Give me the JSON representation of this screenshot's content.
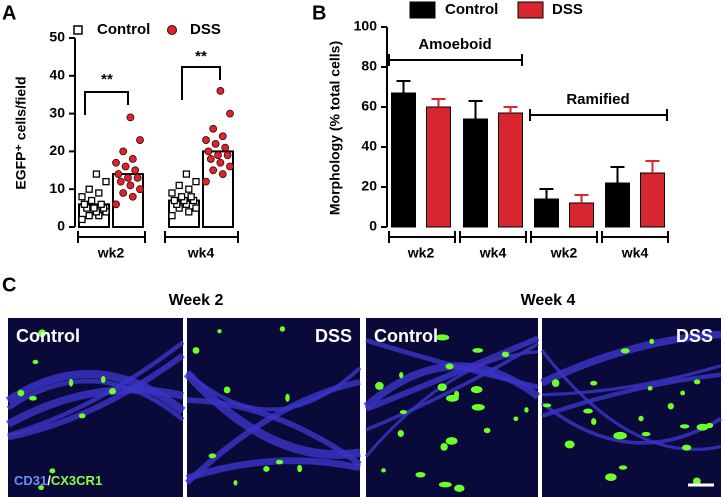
{
  "chart_data": [
    {
      "type": "bar",
      "panel_label": "A",
      "ylabel": "EGFP⁺ cells/field",
      "categories": [
        "wk2",
        "wk4"
      ],
      "series": [
        {
          "name": "Control",
          "color": "#000000",
          "values": [
            6,
            7
          ],
          "points": [
            [
              2,
              3,
              3,
              4,
              4,
              5,
              5,
              5,
              6,
              6,
              7,
              8,
              9,
              10,
              12,
              14
            ],
            [
              3,
              4,
              5,
              5,
              6,
              6,
              7,
              7,
              7,
              8,
              8,
              9,
              10,
              11,
              12,
              14
            ]
          ]
        },
        {
          "name": "DSS",
          "color": "#d7262e",
          "values": [
            14,
            20
          ],
          "points": [
            [
              6,
              8,
              9,
              10,
              11,
              12,
              13,
              13,
              14,
              15,
              16,
              17,
              18,
              20,
              23,
              29
            ],
            [
              12,
              14,
              15,
              16,
              17,
              18,
              19,
              19,
              20,
              21,
              22,
              23,
              24,
              26,
              30,
              36
            ]
          ]
        }
      ],
      "ylim": [
        0,
        50
      ],
      "yticks": [
        0,
        10,
        20,
        30,
        40,
        50
      ],
      "legend": "top",
      "annotations": [
        "**",
        "**"
      ]
    },
    {
      "type": "bar",
      "panel_label": "B",
      "ylabel": "Morphology (% total cells)",
      "categories": [
        "wk2",
        "wk4",
        "wk2",
        "wk4"
      ],
      "series": [
        {
          "name": "Control",
          "color": "#000000",
          "values": [
            67,
            54,
            14,
            22
          ],
          "errors": [
            6,
            9,
            5,
            8
          ]
        },
        {
          "name": "DSS",
          "color": "#d7262e",
          "values": [
            60,
            57,
            12,
            27
          ],
          "errors": [
            4,
            3,
            4,
            6
          ]
        }
      ],
      "ylim": [
        0,
        100
      ],
      "yticks": [
        0,
        20,
        40,
        60,
        80,
        100
      ],
      "legend": "top",
      "annotations": [
        "Amoeboid",
        "Ramified"
      ]
    }
  ],
  "images": {
    "panel_label": "C",
    "groups": [
      "Week 2",
      "Week 4"
    ],
    "panels": [
      "Control",
      "DSS",
      "Control",
      "DSS"
    ],
    "stain": [
      "CD31",
      "/",
      "CX3CR1"
    ]
  }
}
